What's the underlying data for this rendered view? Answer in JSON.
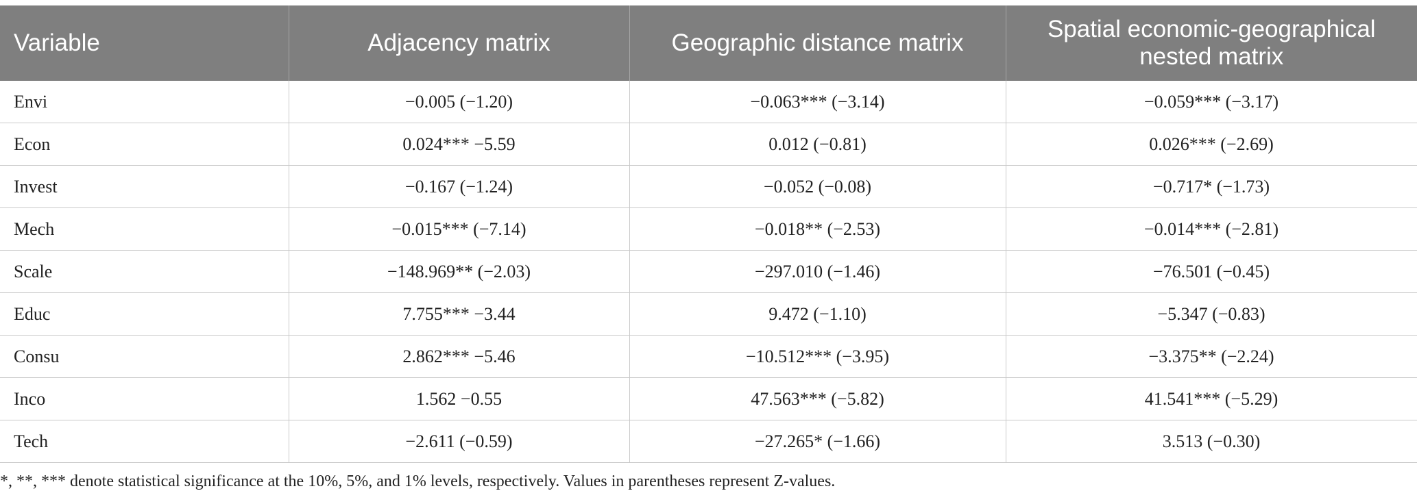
{
  "table": {
    "headers": [
      "Variable",
      "Adjacency matrix",
      "Geographic distance matrix",
      "Spatial economic-geographical nested matrix"
    ],
    "rows": [
      [
        "Envi",
        "−0.005 (−1.20)",
        "−0.063*** (−3.14)",
        "−0.059*** (−3.17)"
      ],
      [
        "Econ",
        "0.024*** −5.59",
        "0.012 (−0.81)",
        "0.026*** (−2.69)"
      ],
      [
        "Invest",
        "−0.167 (−1.24)",
        "−0.052 (−0.08)",
        "−0.717* (−1.73)"
      ],
      [
        "Mech",
        "−0.015*** (−7.14)",
        "−0.018** (−2.53)",
        "−0.014*** (−2.81)"
      ],
      [
        "Scale",
        "−148.969** (−2.03)",
        "−297.010 (−1.46)",
        "−76.501 (−0.45)"
      ],
      [
        "Educ",
        "7.755*** −3.44",
        "9.472 (−1.10)",
        "−5.347 (−0.83)"
      ],
      [
        "Consu",
        "2.862*** −5.46",
        "−10.512*** (−3.95)",
        "−3.375** (−2.24)"
      ],
      [
        "Inco",
        "1.562 −0.55",
        "47.563*** (−5.82)",
        "41.541*** (−5.29)"
      ],
      [
        "Tech",
        "−2.611 (−0.59)",
        "−27.265* (−1.66)",
        "3.513 (−0.30)"
      ]
    ]
  },
  "footnote": "*, **, *** denote statistical significance at the 10%, 5%, and 1% levels, respectively. Values in parentheses represent Z-values.",
  "colors": {
    "header_bg": "#7f7f7f",
    "header_text": "#ffffff",
    "grid": "#c9c9c9",
    "body_text": "#222222"
  }
}
